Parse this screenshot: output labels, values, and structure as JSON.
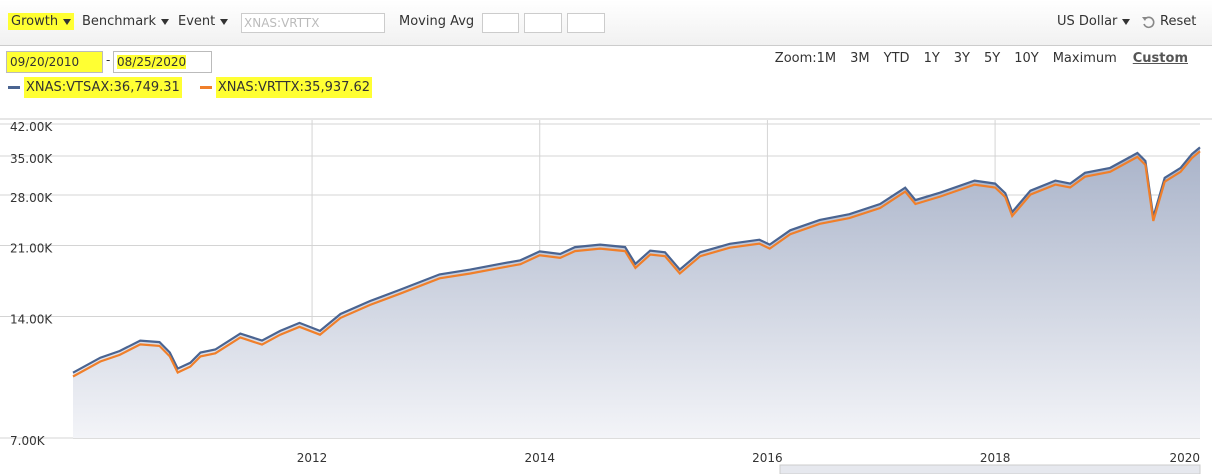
{
  "toolbar": {
    "growth": "Growth",
    "benchmark": "Benchmark",
    "event": "Event",
    "search_placeholder": "XNAS:VRTTX",
    "moving_avg": "Moving Avg",
    "currency": "US Dollar",
    "reset": "Reset"
  },
  "dates": {
    "start": "09/20/2010",
    "separator": "-",
    "end": "08/25/2020"
  },
  "zoom": {
    "label": "Zoom:",
    "options": [
      "1M",
      "3M",
      "YTD",
      "1Y",
      "3Y",
      "5Y",
      "10Y",
      "Maximum",
      "Custom"
    ]
  },
  "chart_data": {
    "type": "line",
    "y_scale": "log",
    "grid": true,
    "area": true,
    "x": [
      2009.9,
      2010.14,
      2010.31,
      2010.49,
      2010.66,
      2010.75,
      2010.82,
      2010.93,
      2011.02,
      2011.15,
      2011.37,
      2011.56,
      2011.72,
      2011.89,
      2012.07,
      2012.25,
      2012.51,
      2012.77,
      2013.12,
      2013.39,
      2013.65,
      2013.83,
      2014.0,
      2014.18,
      2014.31,
      2014.53,
      2014.75,
      2014.84,
      2014.97,
      2015.1,
      2015.23,
      2015.41,
      2015.67,
      2015.93,
      2016.02,
      2016.2,
      2016.46,
      2016.72,
      2016.99,
      2017.21,
      2017.3,
      2017.52,
      2017.82,
      2018.0,
      2018.09,
      2018.15,
      2018.31,
      2018.53,
      2018.66,
      2018.79,
      2019.01,
      2019.25,
      2019.32,
      2019.39,
      2019.49,
      2019.63,
      2019.73,
      2019.8
    ],
    "series": [
      {
        "name": "XNAS:VTSAX:36,749.31",
        "color": "#4a6491",
        "values": [
          10160,
          11070,
          11500,
          12200,
          12100,
          11400,
          10400,
          10750,
          11400,
          11600,
          12700,
          12200,
          12900,
          13500,
          12900,
          14200,
          15300,
          16300,
          17800,
          18300,
          18900,
          19300,
          20300,
          20000,
          20800,
          21100,
          20800,
          18900,
          20400,
          20200,
          18300,
          20200,
          21200,
          21700,
          21100,
          22900,
          24300,
          25100,
          26600,
          29200,
          27200,
          28400,
          30400,
          29900,
          28300,
          25400,
          28700,
          30400,
          29900,
          31800,
          32700,
          35600,
          34000,
          24700,
          30900,
          32700,
          35400,
          36749.31
        ]
      },
      {
        "name": "XNAS:VRTTX:35,937.62",
        "color": "#f07f2a",
        "values": [
          9940,
          10830,
          11250,
          11940,
          11840,
          11150,
          10170,
          10520,
          11150,
          11350,
          12420,
          11930,
          12620,
          13200,
          12620,
          13890,
          14960,
          15940,
          17410,
          17900,
          18480,
          18870,
          19850,
          19560,
          20340,
          20630,
          20340,
          18480,
          19950,
          19750,
          17900,
          19750,
          20730,
          21220,
          20630,
          22390,
          23760,
          24550,
          26010,
          28550,
          26600,
          27770,
          29730,
          29240,
          27670,
          24840,
          28070,
          29730,
          29240,
          31100,
          31980,
          34810,
          33250,
          24150,
          30220,
          31980,
          34620,
          35937.62
        ]
      }
    ],
    "xlim": [
      2009.9,
      2019.8
    ],
    "xticks": [
      2012,
      2014,
      2016,
      2018,
      2020
    ],
    "ylim": [
      7000,
      42000
    ],
    "yticks": [
      {
        "value": 7000,
        "label": "7.00K"
      },
      {
        "value": 14000,
        "label": "14.00K"
      },
      {
        "value": 21000,
        "label": "21.00K"
      },
      {
        "value": 28000,
        "label": "28.00K"
      },
      {
        "value": 35000,
        "label": "35.00K"
      },
      {
        "value": 42000,
        "label": "42.00K"
      }
    ]
  }
}
